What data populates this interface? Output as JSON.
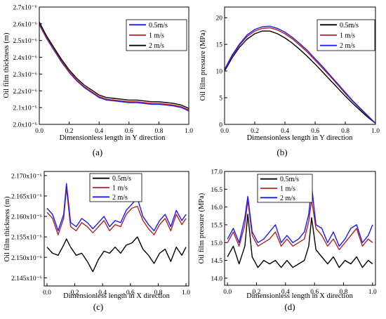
{
  "chart_data": [
    {
      "id": "a",
      "type": "line",
      "caption": "(a)",
      "xlabel": "Dimensionless length in Y direction",
      "ylabel": "Oil film thickness (m)",
      "xlim": [
        0,
        1.0
      ],
      "ylim": [
        2e-06,
        2.7e-06
      ],
      "xticks": [
        0.0,
        0.2,
        0.4,
        0.6,
        0.8,
        1.0
      ],
      "xtick_labels": [
        "0.0",
        "0.2",
        "0.4",
        "0.6",
        "0.8",
        "1.0"
      ],
      "yticks": [
        2e-06,
        2.1e-06,
        2.2e-06,
        2.3e-06,
        2.4e-06,
        2.5e-06,
        2.6e-06,
        2.7e-06
      ],
      "ytick_labels": [
        "2.0x10⁻⁶",
        "2.1x10⁻⁶",
        "2.2x10⁻⁶",
        "2.3x10⁻⁶",
        "2.4x10⁻⁶",
        "2.5x10⁻⁶",
        "2.6x10⁻⁶",
        "2.7x10⁻⁶"
      ],
      "legend_position": "top-right",
      "series": [
        {
          "name": "0.5m/s",
          "color": "#1a1aff",
          "x": [
            0.0,
            0.05,
            0.1,
            0.15,
            0.2,
            0.25,
            0.3,
            0.35,
            0.4,
            0.45,
            0.5,
            0.55,
            0.6,
            0.65,
            0.7,
            0.75,
            0.8,
            0.85,
            0.9,
            0.95,
            1.0
          ],
          "y": [
            2.595e-06,
            2.51e-06,
            2.44e-06,
            2.37e-06,
            2.31e-06,
            2.26e-06,
            2.22e-06,
            2.19e-06,
            2.16e-06,
            2.145e-06,
            2.14e-06,
            2.135e-06,
            2.13e-06,
            2.13e-06,
            2.125e-06,
            2.12e-06,
            2.12e-06,
            2.115e-06,
            2.11e-06,
            2.1e-06,
            2.08e-06
          ]
        },
        {
          "name": "1 m/s",
          "color": "#b22222",
          "x": [
            0.0,
            0.05,
            0.1,
            0.15,
            0.2,
            0.25,
            0.3,
            0.35,
            0.4,
            0.45,
            0.5,
            0.55,
            0.6,
            0.65,
            0.7,
            0.75,
            0.8,
            0.85,
            0.9,
            0.95,
            1.0
          ],
          "y": [
            2.6e-06,
            2.515e-06,
            2.445e-06,
            2.375e-06,
            2.315e-06,
            2.265e-06,
            2.225e-06,
            2.195e-06,
            2.165e-06,
            2.15e-06,
            2.145e-06,
            2.14e-06,
            2.135e-06,
            2.135e-06,
            2.13e-06,
            2.125e-06,
            2.125e-06,
            2.12e-06,
            2.115e-06,
            2.105e-06,
            2.085e-06
          ]
        },
        {
          "name": "2 m/s",
          "color": "#000000",
          "x": [
            0.0,
            0.05,
            0.1,
            0.15,
            0.2,
            0.25,
            0.3,
            0.35,
            0.4,
            0.45,
            0.5,
            0.55,
            0.6,
            0.65,
            0.7,
            0.75,
            0.8,
            0.85,
            0.9,
            0.95,
            1.0
          ],
          "y": [
            2.61e-06,
            2.525e-06,
            2.455e-06,
            2.385e-06,
            2.325e-06,
            2.275e-06,
            2.235e-06,
            2.205e-06,
            2.175e-06,
            2.16e-06,
            2.155e-06,
            2.15e-06,
            2.145e-06,
            2.145e-06,
            2.14e-06,
            2.135e-06,
            2.135e-06,
            2.13e-06,
            2.125e-06,
            2.115e-06,
            2.095e-06
          ]
        }
      ]
    },
    {
      "id": "b",
      "type": "line",
      "caption": "(b)",
      "xlabel": "Dimensionless length in Y direction",
      "ylabel": "Oil film pressure (MPa)",
      "xlim": [
        0,
        1.0
      ],
      "ylim": [
        0,
        22
      ],
      "xticks": [
        0.0,
        0.2,
        0.4,
        0.6,
        0.8,
        1.0
      ],
      "xtick_labels": [
        "0.0",
        "0.2",
        "0.4",
        "0.6",
        "0.8",
        "1.0"
      ],
      "yticks": [
        0,
        5,
        10,
        15,
        20
      ],
      "ytick_labels": [
        "0",
        "5",
        "10",
        "15",
        "20"
      ],
      "legend_position": "top-right",
      "series": [
        {
          "name": "0.5m/s",
          "color": "#000000",
          "x": [
            0.0,
            0.05,
            0.1,
            0.15,
            0.2,
            0.25,
            0.3,
            0.35,
            0.4,
            0.45,
            0.5,
            0.55,
            0.6,
            0.65,
            0.7,
            0.75,
            0.8,
            0.85,
            0.9,
            0.95,
            1.0
          ],
          "y": [
            10.0,
            12.5,
            14.5,
            16.0,
            17.0,
            17.5,
            17.5,
            17.0,
            16.2,
            15.2,
            14.0,
            12.7,
            11.3,
            9.8,
            8.3,
            6.8,
            5.3,
            3.9,
            2.6,
            1.3,
            0.2
          ]
        },
        {
          "name": "1 m/s",
          "color": "#b22222",
          "x": [
            0.0,
            0.05,
            0.1,
            0.15,
            0.2,
            0.25,
            0.3,
            0.35,
            0.4,
            0.45,
            0.5,
            0.55,
            0.6,
            0.65,
            0.7,
            0.75,
            0.8,
            0.85,
            0.9,
            0.95,
            1.0
          ],
          "y": [
            10.2,
            12.8,
            14.9,
            16.5,
            17.5,
            18.0,
            18.1,
            17.7,
            17.0,
            16.0,
            14.8,
            13.5,
            12.0,
            10.5,
            9.0,
            7.4,
            5.8,
            4.3,
            2.9,
            1.5,
            0.2
          ]
        },
        {
          "name": "2 m/s",
          "color": "#1a1aff",
          "x": [
            0.0,
            0.05,
            0.1,
            0.15,
            0.2,
            0.25,
            0.3,
            0.35,
            0.4,
            0.45,
            0.5,
            0.55,
            0.6,
            0.65,
            0.7,
            0.75,
            0.8,
            0.85,
            0.9,
            0.95,
            1.0
          ],
          "y": [
            10.3,
            13.0,
            15.1,
            16.8,
            17.8,
            18.3,
            18.4,
            18.0,
            17.3,
            16.3,
            15.1,
            13.8,
            12.3,
            10.8,
            9.2,
            7.6,
            6.0,
            4.4,
            3.0,
            1.6,
            0.2
          ]
        }
      ]
    },
    {
      "id": "c",
      "type": "line",
      "caption": "(c)",
      "xlabel": "Dimensionless length in X direction",
      "ylabel": "Oil film thickness (m)",
      "xlim": [
        -0.02,
        1.02
      ],
      "ylim": [
        2.143e-06,
        2.171e-06
      ],
      "xticks": [
        0.0,
        0.2,
        0.4,
        0.6,
        0.8,
        1.0
      ],
      "xtick_labels": [
        "0.0",
        "0.2",
        "0.4",
        "0.6",
        "0.8",
        "1.0"
      ],
      "yticks": [
        2.145e-06,
        2.15e-06,
        2.155e-06,
        2.16e-06,
        2.165e-06,
        2.17e-06
      ],
      "ytick_labels": [
        "2.145x10⁻⁶",
        "2.150x10⁻⁶",
        "2.155x10⁻⁶",
        "2.160x10⁻⁶",
        "2.165x10⁻⁶",
        "2.170x10⁻⁶"
      ],
      "legend_position": "top-center",
      "series": [
        {
          "name": "0.5m/s",
          "color": "#000000",
          "x": [
            0.0,
            0.04,
            0.08,
            0.12,
            0.14,
            0.17,
            0.21,
            0.25,
            0.29,
            0.33,
            0.37,
            0.41,
            0.45,
            0.49,
            0.53,
            0.57,
            0.61,
            0.65,
            0.69,
            0.73,
            0.77,
            0.81,
            0.85,
            0.89,
            0.93,
            0.97,
            1.0
          ],
          "y": [
            2.1525e-06,
            2.151e-06,
            2.1505e-06,
            2.153e-06,
            2.1545e-06,
            2.1525e-06,
            2.1505e-06,
            2.151e-06,
            2.149e-06,
            2.1465e-06,
            2.1495e-06,
            2.1515e-06,
            2.151e-06,
            2.1525e-06,
            2.151e-06,
            2.153e-06,
            2.1535e-06,
            2.155e-06,
            2.152e-06,
            2.1505e-06,
            2.1485e-06,
            2.151e-06,
            2.152e-06,
            2.149e-06,
            2.1525e-06,
            2.1505e-06,
            2.1525e-06
          ]
        },
        {
          "name": "1 m/s",
          "color": "#b22222",
          "x": [
            0.0,
            0.04,
            0.08,
            0.12,
            0.14,
            0.17,
            0.21,
            0.25,
            0.29,
            0.33,
            0.37,
            0.41,
            0.45,
            0.49,
            0.53,
            0.57,
            0.61,
            0.65,
            0.69,
            0.73,
            0.77,
            0.81,
            0.85,
            0.89,
            0.93,
            0.97,
            1.0
          ],
          "y": [
            2.161e-06,
            2.1595e-06,
            2.1555e-06,
            2.1595e-06,
            2.167e-06,
            2.1575e-06,
            2.1565e-06,
            2.1585e-06,
            2.1575e-06,
            2.156e-06,
            2.1575e-06,
            2.159e-06,
            2.1565e-06,
            2.158e-06,
            2.1575e-06,
            2.1605e-06,
            2.162e-06,
            2.1625e-06,
            2.159e-06,
            2.157e-06,
            2.1555e-06,
            2.158e-06,
            2.1595e-06,
            2.1565e-06,
            2.1605e-06,
            2.158e-06,
            2.1595e-06
          ]
        },
        {
          "name": "2 m/s",
          "color": "#1a1aff",
          "x": [
            0.0,
            0.04,
            0.08,
            0.12,
            0.14,
            0.17,
            0.21,
            0.25,
            0.29,
            0.33,
            0.37,
            0.41,
            0.45,
            0.49,
            0.53,
            0.57,
            0.61,
            0.65,
            0.69,
            0.73,
            0.77,
            0.81,
            0.85,
            0.89,
            0.93,
            0.97,
            1.0
          ],
          "y": [
            2.162e-06,
            2.1605e-06,
            2.1565e-06,
            2.1605e-06,
            2.168e-06,
            2.1585e-06,
            2.1575e-06,
            2.1595e-06,
            2.1585e-06,
            2.157e-06,
            2.1585e-06,
            2.16e-06,
            2.1575e-06,
            2.159e-06,
            2.1585e-06,
            2.1615e-06,
            2.163e-06,
            2.1645e-06,
            2.16e-06,
            2.158e-06,
            2.1565e-06,
            2.159e-06,
            2.1605e-06,
            2.1575e-06,
            2.1615e-06,
            2.159e-06,
            2.1605e-06
          ]
        }
      ]
    },
    {
      "id": "d",
      "type": "line",
      "caption": "(d)",
      "xlabel": "Dimensionless length in X direction",
      "ylabel": "Oil film pressure (MPa)",
      "xlim": [
        -0.02,
        1.02
      ],
      "ylim": [
        13.8,
        17.0
      ],
      "xticks": [
        0.0,
        0.2,
        0.4,
        0.6,
        0.8,
        1.0
      ],
      "xtick_labels": [
        "0.0",
        "0.2",
        "0.4",
        "0.6",
        "0.8",
        "1.0"
      ],
      "yticks": [
        14.0,
        14.5,
        15.0,
        15.5,
        16.0,
        16.5,
        17.0
      ],
      "ytick_labels": [
        "14.0",
        "14.5",
        "15.0",
        "15.5",
        "16.0",
        "16.5",
        "17.0"
      ],
      "legend_position": "top-left",
      "series": [
        {
          "name": "0.5m/s",
          "color": "#000000",
          "x": [
            0.0,
            0.04,
            0.08,
            0.12,
            0.14,
            0.17,
            0.21,
            0.25,
            0.29,
            0.33,
            0.37,
            0.41,
            0.45,
            0.49,
            0.53,
            0.56,
            0.58,
            0.61,
            0.65,
            0.69,
            0.73,
            0.77,
            0.81,
            0.85,
            0.89,
            0.93,
            0.97,
            1.0
          ],
          "y": [
            14.6,
            14.9,
            14.4,
            14.9,
            15.8,
            14.6,
            14.3,
            14.5,
            14.4,
            14.5,
            14.3,
            14.5,
            14.3,
            14.4,
            14.5,
            14.9,
            15.7,
            14.8,
            14.6,
            14.4,
            14.6,
            14.3,
            14.5,
            14.4,
            14.6,
            14.3,
            14.5,
            14.4
          ]
        },
        {
          "name": "1 m/s",
          "color": "#b22222",
          "x": [
            0.0,
            0.04,
            0.08,
            0.12,
            0.14,
            0.17,
            0.21,
            0.25,
            0.29,
            0.33,
            0.37,
            0.41,
            0.45,
            0.49,
            0.53,
            0.56,
            0.58,
            0.61,
            0.65,
            0.69,
            0.73,
            0.77,
            0.81,
            0.85,
            0.89,
            0.93,
            0.97,
            1.0
          ],
          "y": [
            15.0,
            15.3,
            14.9,
            15.5,
            16.2,
            15.2,
            14.9,
            15.0,
            15.1,
            15.3,
            14.9,
            15.1,
            14.9,
            15.0,
            15.1,
            15.6,
            16.2,
            15.4,
            15.2,
            14.9,
            15.1,
            14.8,
            15.0,
            15.2,
            15.4,
            14.9,
            15.1,
            15.0
          ]
        },
        {
          "name": "2 m/s",
          "color": "#1a1aff",
          "x": [
            0.0,
            0.04,
            0.08,
            0.12,
            0.14,
            0.17,
            0.21,
            0.25,
            0.29,
            0.33,
            0.37,
            0.41,
            0.45,
            0.49,
            0.53,
            0.56,
            0.58,
            0.61,
            0.65,
            0.69,
            0.73,
            0.77,
            0.81,
            0.85,
            0.89,
            0.93,
            0.97,
            1.0
          ],
          "y": [
            15.1,
            15.4,
            15.0,
            15.7,
            16.3,
            15.3,
            15.0,
            15.1,
            15.3,
            15.5,
            15.0,
            15.2,
            15.0,
            15.1,
            15.3,
            15.8,
            16.6,
            15.5,
            15.4,
            15.0,
            15.3,
            14.9,
            15.1,
            15.4,
            15.5,
            15.0,
            15.2,
            15.5
          ]
        }
      ]
    }
  ]
}
